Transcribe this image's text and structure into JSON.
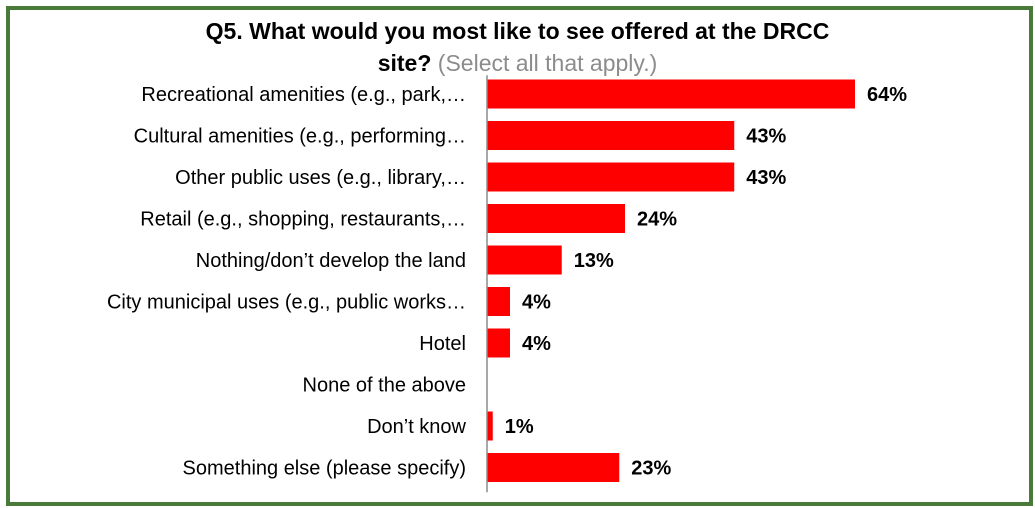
{
  "chart_data": {
    "type": "bar",
    "orientation": "horizontal",
    "title": "Q5. What would you most like to see offered at the DRCC site?",
    "title_line1": "Q5. What would you most like to see offered at the DRCC",
    "title_line2": "site?",
    "subtitle": "(Select all that apply.)",
    "categories": [
      "Recreational amenities (e.g., park,…",
      "Cultural amenities (e.g., performing…",
      "Other public uses (e.g., library,…",
      "Retail (e.g., shopping, restaurants,…",
      "Nothing/don’t develop the land",
      "City municipal uses (e.g., public works…",
      "Hotel",
      "None of the above",
      "Don’t know",
      "Something else (please specify)"
    ],
    "values": [
      64,
      43,
      43,
      24,
      13,
      4,
      4,
      0,
      1,
      23
    ],
    "value_labels": [
      "64%",
      "43%",
      "43%",
      "24%",
      "13%",
      "4%",
      "4%",
      "",
      "1%",
      "23%"
    ],
    "xlim": [
      0,
      100
    ],
    "unit": "%",
    "grid": false,
    "legend": "none",
    "bar_color": "#ff0000",
    "axis_color": "#8c8c8c",
    "frame_color": "#4a7a3a"
  }
}
